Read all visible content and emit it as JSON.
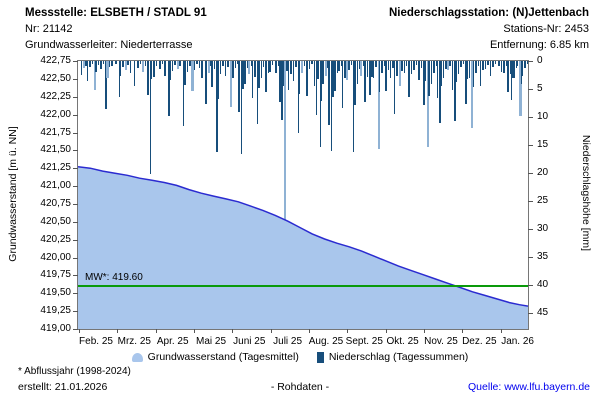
{
  "header": {
    "left": {
      "line1": "Messstelle: ELSBETH / STADL 91",
      "line2": "Nr: 21142",
      "line3": "Grundwasserleiter:  Niederterrasse"
    },
    "right": {
      "line1": "Niederschlagsstation: (N)Jettenbach",
      "line2": "Stations-Nr: 2453",
      "line3": "Entfernung: 6.85 km"
    }
  },
  "colors": {
    "bar_dark": "#174e7b",
    "bar_light": "#8fb2d4",
    "area_fill": "#a9c6ec",
    "area_line": "#2b2bd0",
    "mw_line": "#0a9a0a",
    "link": "#0000ee"
  },
  "chart_data": {
    "type": "combo",
    "x_axis": {
      "tick_labels": [
        "Feb. 25",
        "Mrz. 25",
        "Apr. 25",
        "Mai 25",
        "Juni 25",
        "Juli 25",
        "Aug. 25",
        "Sept. 25",
        "Okt. 25",
        "Nov. 25",
        "Dez. 25",
        "Jan. 26"
      ],
      "days_span": 365
    },
    "y_left": {
      "label": "Grundwasserstand [m ü. NN]",
      "range": [
        419.0,
        422.75
      ],
      "ticks": [
        "422,75",
        "422,50",
        "422,25",
        "422,00",
        "421,75",
        "421,50",
        "421,25",
        "421,00",
        "420,75",
        "420,50",
        "420,25",
        "420,00",
        "419,75",
        "419,50",
        "419,25",
        "419,00"
      ]
    },
    "y_right": {
      "label": "Niederschlagshöhe [mm]",
      "range": [
        0,
        47.9
      ],
      "direction": "down",
      "ticks": [
        "0",
        "5",
        "10",
        "15",
        "20",
        "25",
        "30",
        "35",
        "40",
        "45"
      ]
    },
    "reference_line": {
      "label": "MW*: 419.60",
      "value": 419.6
    },
    "series": [
      {
        "name": "Grundwasserstand (Tagesmittel)",
        "type": "area",
        "axis": "left",
        "unit": "m ü. NN",
        "points": [
          [
            0,
            421.27
          ],
          [
            10,
            421.25
          ],
          [
            20,
            421.21
          ],
          [
            30,
            421.18
          ],
          [
            40,
            421.15
          ],
          [
            50,
            421.11
          ],
          [
            60,
            421.08
          ],
          [
            70,
            421.05
          ],
          [
            80,
            421.01
          ],
          [
            90,
            420.95
          ],
          [
            100,
            420.9
          ],
          [
            110,
            420.86
          ],
          [
            120,
            420.82
          ],
          [
            130,
            420.78
          ],
          [
            140,
            420.72
          ],
          [
            150,
            420.66
          ],
          [
            160,
            420.59
          ],
          [
            170,
            420.51
          ],
          [
            180,
            420.42
          ],
          [
            190,
            420.33
          ],
          [
            200,
            420.26
          ],
          [
            210,
            420.2
          ],
          [
            220,
            420.15
          ],
          [
            230,
            420.09
          ],
          [
            240,
            420.02
          ],
          [
            250,
            419.95
          ],
          [
            260,
            419.88
          ],
          [
            270,
            419.82
          ],
          [
            280,
            419.76
          ],
          [
            290,
            419.7
          ],
          [
            300,
            419.64
          ],
          [
            310,
            419.58
          ],
          [
            320,
            419.52
          ],
          [
            330,
            419.47
          ],
          [
            340,
            419.42
          ],
          [
            350,
            419.37
          ],
          [
            358,
            419.34
          ],
          [
            365,
            419.32
          ]
        ]
      },
      {
        "name": "Niederschlag (Tagessummen)",
        "type": "bar",
        "axis": "right",
        "unit": "mm",
        "hang_from_top": true,
        "bars": [
          [
            2,
            2.5,
            "d"
          ],
          [
            4,
            1.2,
            "l"
          ],
          [
            6,
            0.8,
            "d"
          ],
          [
            7,
            3.6,
            "d"
          ],
          [
            9,
            1,
            "d"
          ],
          [
            11,
            0.5,
            "d"
          ],
          [
            13,
            5.2,
            "l"
          ],
          [
            14,
            2,
            "d"
          ],
          [
            16,
            0.7,
            "d"
          ],
          [
            18,
            1.5,
            "d"
          ],
          [
            20,
            0.6,
            "d"
          ],
          [
            22,
            8.6,
            "d"
          ],
          [
            23,
            3,
            "l"
          ],
          [
            25,
            1.1,
            "d"
          ],
          [
            27,
            0.9,
            "d"
          ],
          [
            30,
            0.5,
            "d"
          ],
          [
            33,
            6.5,
            "d"
          ],
          [
            34,
            2.6,
            "d"
          ],
          [
            36,
            1,
            "d"
          ],
          [
            38,
            1.6,
            "l"
          ],
          [
            40,
            0.7,
            "d"
          ],
          [
            42,
            2.1,
            "d"
          ],
          [
            45,
            4.4,
            "d"
          ],
          [
            48,
            1.2,
            "d"
          ],
          [
            50,
            0.6,
            "d"
          ],
          [
            52,
            2,
            "l"
          ],
          [
            54,
            0.9,
            "d"
          ],
          [
            56,
            6.1,
            "d"
          ],
          [
            58,
            20.2,
            "d"
          ],
          [
            59,
            3.2,
            "d"
          ],
          [
            61,
            2.8,
            "d"
          ],
          [
            63,
            0.8,
            "d"
          ],
          [
            66,
            1.5,
            "d"
          ],
          [
            68,
            0.6,
            "d"
          ],
          [
            70,
            2.6,
            "d"
          ],
          [
            73,
            9.8,
            "d"
          ],
          [
            74,
            3.4,
            "d"
          ],
          [
            76,
            1.8,
            "d"
          ],
          [
            78,
            0.7,
            "d"
          ],
          [
            80,
            1.5,
            "l"
          ],
          [
            82,
            0.9,
            "d"
          ],
          [
            85,
            11.6,
            "d"
          ],
          [
            86,
            4.2,
            "d"
          ],
          [
            88,
            2,
            "d"
          ],
          [
            90,
            0.8,
            "d"
          ],
          [
            92,
            5.4,
            "l"
          ],
          [
            94,
            1.6,
            "d"
          ],
          [
            96,
            0.6,
            "d"
          ],
          [
            98,
            1.2,
            "d"
          ],
          [
            100,
            3,
            "d"
          ],
          [
            103,
            7.6,
            "d"
          ],
          [
            105,
            2.2,
            "l"
          ],
          [
            107,
            0.9,
            "d"
          ],
          [
            108,
            4.6,
            "d"
          ],
          [
            110,
            1.4,
            "d"
          ],
          [
            112,
            16.2,
            "d"
          ],
          [
            113,
            6.8,
            "d"
          ],
          [
            115,
            2.4,
            "d"
          ],
          [
            117,
            0.8,
            "d"
          ],
          [
            119,
            2.6,
            "d"
          ],
          [
            121,
            1,
            "d"
          ],
          [
            123,
            8.2,
            "l"
          ],
          [
            125,
            3.1,
            "d"
          ],
          [
            127,
            1.3,
            "d"
          ],
          [
            129,
            0.6,
            "d"
          ],
          [
            130,
            9.1,
            "d"
          ],
          [
            132,
            16.6,
            "d"
          ],
          [
            133,
            5,
            "d"
          ],
          [
            135,
            4.1,
            "d"
          ],
          [
            137,
            1.2,
            "d"
          ],
          [
            138,
            2.4,
            "l"
          ],
          [
            140,
            0.8,
            "d"
          ],
          [
            141,
            6.6,
            "d"
          ],
          [
            143,
            2.9,
            "d"
          ],
          [
            145,
            11.3,
            "d"
          ],
          [
            146,
            4.8,
            "d"
          ],
          [
            148,
            3.1,
            "d"
          ],
          [
            150,
            1.1,
            "d"
          ],
          [
            152,
            5.6,
            "d"
          ],
          [
            154,
            2.2,
            "d"
          ],
          [
            155,
            2,
            "d"
          ],
          [
            157,
            0.7,
            "d"
          ],
          [
            160,
            2.1,
            "d"
          ],
          [
            162,
            0.9,
            "d"
          ],
          [
            163,
            7.4,
            "d"
          ],
          [
            165,
            10.6,
            "d"
          ],
          [
            166,
            4.4,
            "d"
          ],
          [
            167,
            33.6,
            "l"
          ],
          [
            169,
            1.8,
            "d"
          ],
          [
            170,
            5.1,
            "d"
          ],
          [
            172,
            2.3,
            "d"
          ],
          [
            174,
            3.6,
            "d"
          ],
          [
            176,
            1,
            "d"
          ],
          [
            178,
            12.8,
            "d"
          ],
          [
            179,
            5.8,
            "d"
          ],
          [
            181,
            2.1,
            "l"
          ],
          [
            183,
            0.9,
            "d"
          ],
          [
            185,
            6.2,
            "d"
          ],
          [
            187,
            1.4,
            "d"
          ],
          [
            189,
            0.6,
            "d"
          ],
          [
            191,
            4.4,
            "d"
          ],
          [
            193,
            9.6,
            "d"
          ],
          [
            194,
            3.2,
            "d"
          ],
          [
            196,
            15.4,
            "d"
          ],
          [
            197,
            7.2,
            "d"
          ],
          [
            198,
            4.1,
            "d"
          ],
          [
            200,
            2.6,
            "l"
          ],
          [
            202,
            1.2,
            "d"
          ],
          [
            203,
            11.4,
            "d"
          ],
          [
            205,
            16.1,
            "d"
          ],
          [
            206,
            6.4,
            "d"
          ],
          [
            208,
            5.4,
            "d"
          ],
          [
            210,
            2.2,
            "d"
          ],
          [
            211,
            1.8,
            "d"
          ],
          [
            213,
            0.9,
            "d"
          ],
          [
            214,
            8.4,
            "d"
          ],
          [
            216,
            3.1,
            "d"
          ],
          [
            217,
            3.4,
            "l"
          ],
          [
            219,
            1.6,
            "d"
          ],
          [
            221,
            0.7,
            "d"
          ],
          [
            223,
            16.2,
            "d"
          ],
          [
            224,
            7.8,
            "d"
          ],
          [
            226,
            4.1,
            "d"
          ],
          [
            228,
            1.4,
            "d"
          ],
          [
            229,
            2.6,
            "l"
          ],
          [
            231,
            0.8,
            "d"
          ],
          [
            232,
            7.4,
            "d"
          ],
          [
            234,
            2.8,
            "d"
          ],
          [
            236,
            6.1,
            "d"
          ],
          [
            238,
            2.9,
            "d"
          ],
          [
            239,
            3.1,
            "d"
          ],
          [
            241,
            1.1,
            "d"
          ],
          [
            243,
            15.8,
            "l"
          ],
          [
            244,
            5.6,
            "d"
          ],
          [
            246,
            2.1,
            "d"
          ],
          [
            248,
            0.9,
            "d"
          ],
          [
            249,
            5.4,
            "d"
          ],
          [
            251,
            1.6,
            "d"
          ],
          [
            253,
            3.1,
            "d"
          ],
          [
            255,
            1.2,
            "d"
          ],
          [
            256,
            9.4,
            "d"
          ],
          [
            258,
            2.6,
            "d"
          ],
          [
            260,
            4.4,
            "l"
          ],
          [
            262,
            1.8,
            "d"
          ],
          [
            264,
            2.1,
            "d"
          ],
          [
            266,
            0.8,
            "d"
          ],
          [
            268,
            6.4,
            "d"
          ],
          [
            270,
            2.4,
            "d"
          ],
          [
            272,
            1.6,
            "d"
          ],
          [
            274,
            0.7,
            "d"
          ],
          [
            276,
            3.4,
            "d"
          ],
          [
            278,
            1.2,
            "d"
          ],
          [
            280,
            7.9,
            "d"
          ],
          [
            281,
            3.6,
            "d"
          ],
          [
            283,
            15.4,
            "l"
          ],
          [
            284,
            6.2,
            "d"
          ],
          [
            286,
            4.1,
            "d"
          ],
          [
            288,
            2.1,
            "d"
          ],
          [
            290,
            0.9,
            "d"
          ],
          [
            291,
            6.6,
            "d"
          ],
          [
            293,
            11.1,
            "d"
          ],
          [
            294,
            4.4,
            "d"
          ],
          [
            296,
            3.1,
            "d"
          ],
          [
            298,
            1.4,
            "d"
          ],
          [
            299,
            1.6,
            "l"
          ],
          [
            301,
            0.8,
            "d"
          ],
          [
            303,
            5.1,
            "d"
          ],
          [
            305,
            10.8,
            "d"
          ],
          [
            306,
            3.8,
            "d"
          ],
          [
            308,
            2.4,
            "d"
          ],
          [
            310,
            1.1,
            "d"
          ],
          [
            312,
            0.6,
            "d"
          ],
          [
            314,
            7.6,
            "d"
          ],
          [
            315,
            3.2,
            "d"
          ],
          [
            317,
            3.1,
            "d"
          ],
          [
            319,
            11.9,
            "l"
          ],
          [
            320,
            4.6,
            "d"
          ],
          [
            322,
            2.1,
            "d"
          ],
          [
            324,
            0.9,
            "d"
          ],
          [
            326,
            4.4,
            "d"
          ],
          [
            328,
            1.6,
            "d"
          ],
          [
            330,
            1.4,
            "d"
          ],
          [
            332,
            0.7,
            "d"
          ],
          [
            334,
            2.6,
            "d"
          ],
          [
            336,
            1.1,
            "d"
          ],
          [
            338,
            0.5,
            "d"
          ],
          [
            341,
            0.8,
            "d"
          ],
          [
            343,
            1.9,
            "d"
          ],
          [
            345,
            2.1,
            "d"
          ],
          [
            347,
            0.9,
            "d"
          ],
          [
            348,
            5.6,
            "d"
          ],
          [
            350,
            2.4,
            "d"
          ],
          [
            351,
            6.9,
            "d"
          ],
          [
            352,
            3.1,
            "d"
          ],
          [
            353,
            3,
            "d"
          ],
          [
            355,
            1.2,
            "d"
          ],
          [
            356,
            0.8,
            "d"
          ],
          [
            358,
            9.9,
            "l"
          ],
          [
            359,
            4.1,
            "d"
          ],
          [
            360,
            2.6,
            "d"
          ],
          [
            362,
            1.2,
            "d"
          ],
          [
            364,
            0.6,
            "d"
          ]
        ]
      }
    ]
  },
  "footer": {
    "footnote": "* Abflussjahr (1998-2024)",
    "created": "erstellt:  21.01.2026",
    "center": "- Rohdaten -",
    "source": "Quelle: www.lfu.bayern.de"
  }
}
